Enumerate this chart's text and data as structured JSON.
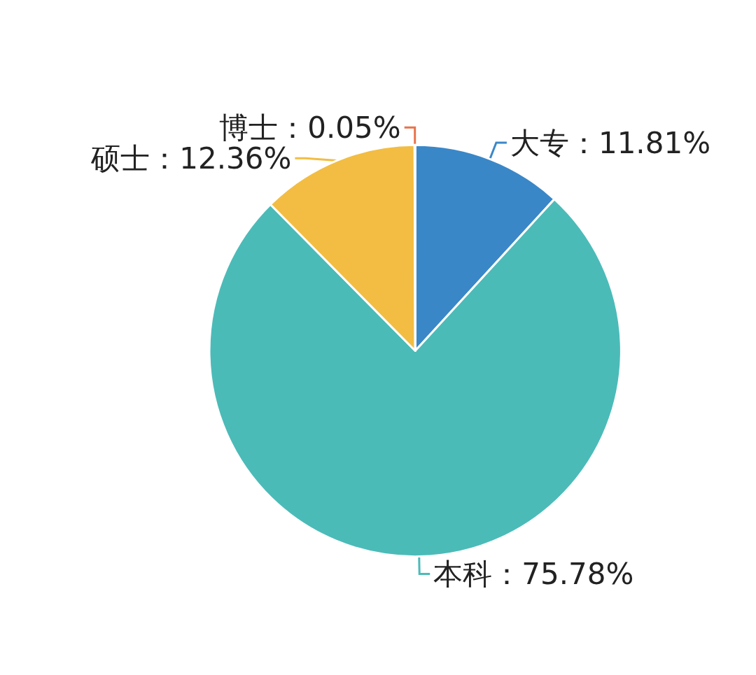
{
  "chart_data": {
    "type": "pie",
    "categories": [
      "大专",
      "本科",
      "硕士",
      "博士"
    ],
    "values": [
      11.81,
      75.78,
      12.36,
      0.05
    ],
    "colors": [
      "#3a87c8",
      "#4bbbb8",
      "#f2bd42",
      "#e8734a"
    ],
    "value_labels": [
      "11.81%",
      "75.78%",
      "12.36%",
      "0.05%"
    ],
    "legend": false
  }
}
